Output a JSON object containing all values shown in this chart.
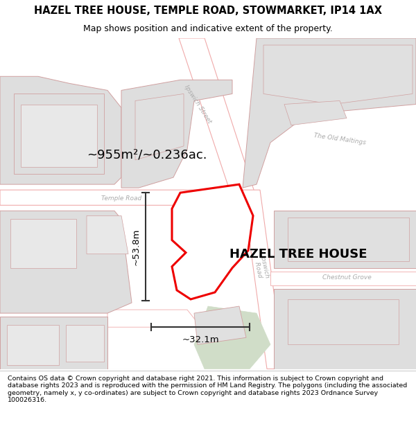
{
  "title": "HAZEL TREE HOUSE, TEMPLE ROAD, STOWMARKET, IP14 1AX",
  "subtitle": "Map shows position and indicative extent of the property.",
  "footer": "Contains OS data © Crown copyright and database right 2021. This information is subject to Crown copyright and database rights 2023 and is reproduced with the permission of HM Land Registry. The polygons (including the associated geometry, namely x, y co-ordinates) are subject to Crown copyright and database rights 2023 Ordnance Survey 100026316.",
  "property_label": "HAZEL TREE HOUSE",
  "area_label": "~955m²/~0.236ac.",
  "width_label": "~32.1m",
  "height_label": "~53.8m",
  "road_outline": "#f0aaaa",
  "road_fill": "#ffffff",
  "property_fill": "#ffffff",
  "property_stroke": "#ee0000",
  "green_fill": "#d0ddc8",
  "building_fill": "#dedede",
  "building_stroke": "#d0a0a0",
  "map_bg": "#ffffff",
  "label_color": "#aaaaaa",
  "dim_color": "#333333"
}
